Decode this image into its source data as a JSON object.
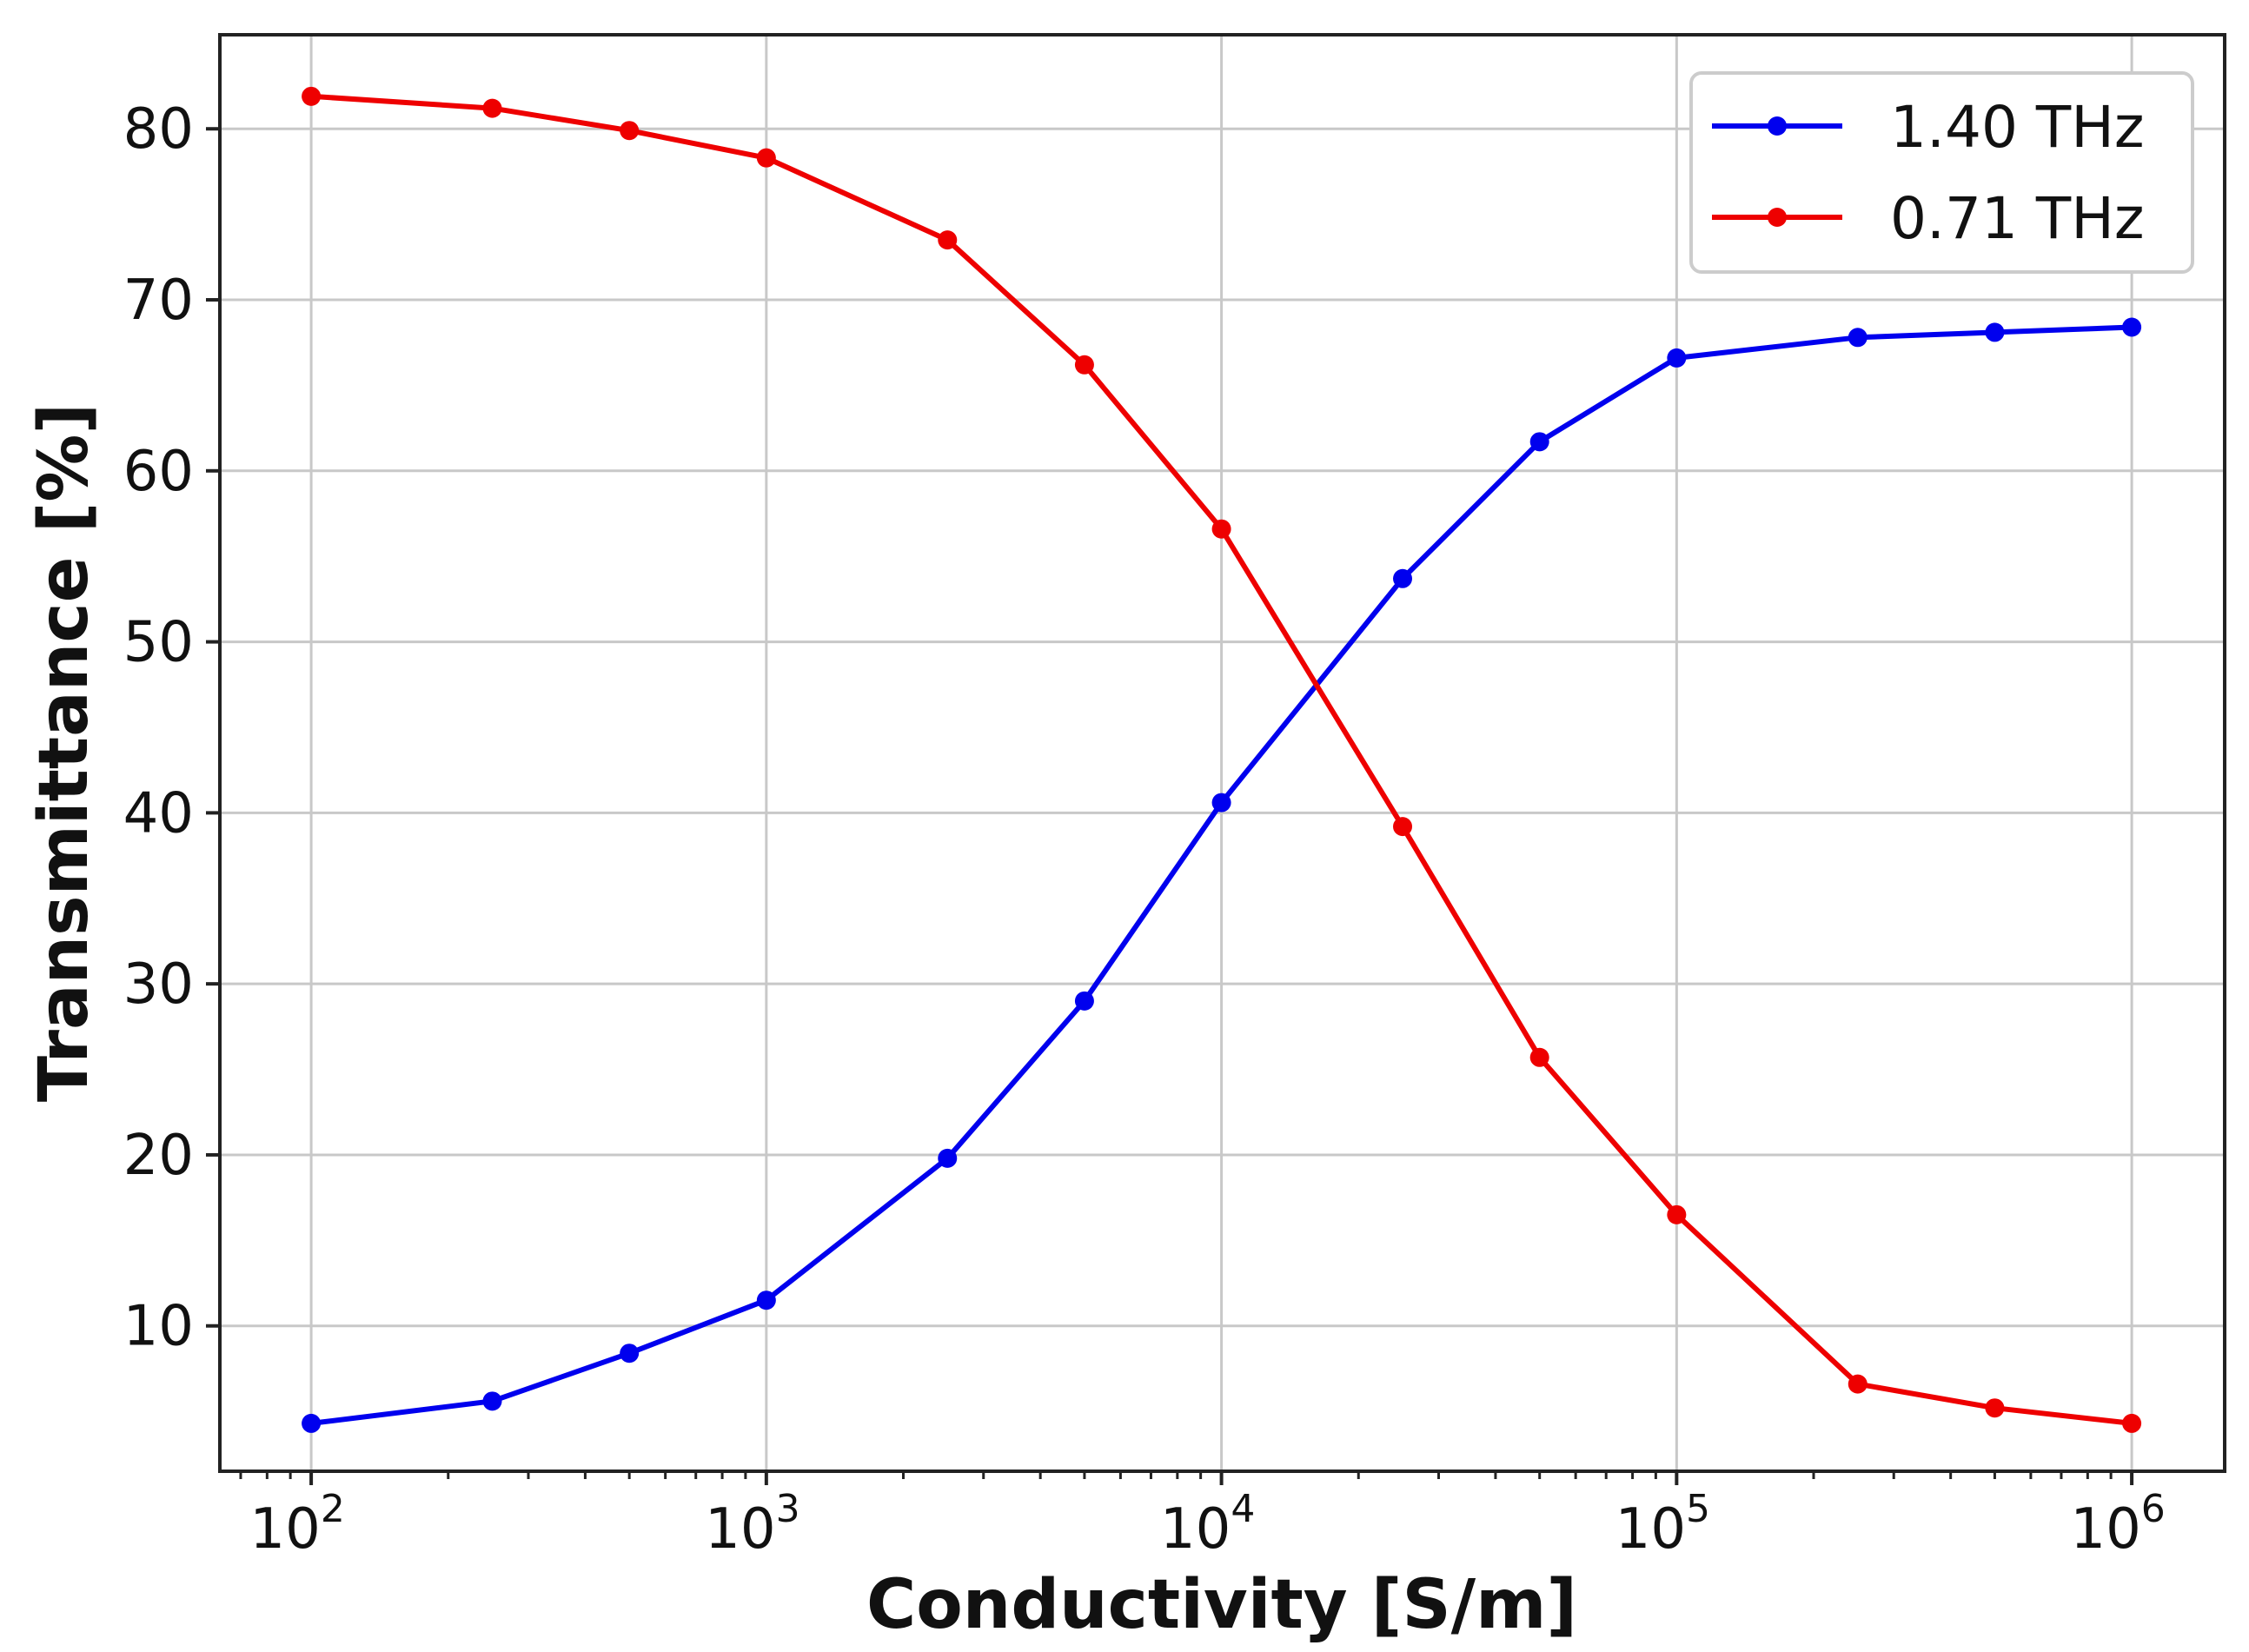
{
  "chart_data": {
    "type": "line",
    "title": "",
    "xlabel": "Conductivity [S/m]",
    "ylabel": "Transmittance [%]",
    "xscale": "log",
    "xlim": [
      63,
      1600000
    ],
    "ylim": [
      1.5,
      85.5
    ],
    "grid": true,
    "legend_position": "top-right",
    "x_ticks": [
      {
        "value": 100,
        "base": "10",
        "exp": "2"
      },
      {
        "value": 1000,
        "base": "10",
        "exp": "3"
      },
      {
        "value": 10000,
        "base": "10",
        "exp": "4"
      },
      {
        "value": 100000,
        "base": "10",
        "exp": "5"
      },
      {
        "value": 1000000,
        "base": "10",
        "exp": "6"
      }
    ],
    "y_ticks": [
      10,
      20,
      30,
      40,
      50,
      60,
      70,
      80
    ],
    "x": [
      100,
      250,
      500,
      1000,
      2500,
      5000,
      10000,
      25000,
      50000,
      100000,
      250000,
      500000,
      1000000
    ],
    "series": [
      {
        "name": "1.40 THz",
        "color": "#0000ee",
        "values": [
          4.3,
          5.6,
          8.4,
          11.5,
          19.8,
          29.0,
          40.6,
          53.7,
          61.7,
          66.6,
          67.8,
          68.1,
          68.4
        ]
      },
      {
        "name": "0.71 THz",
        "color": "#ee0000",
        "values": [
          81.9,
          81.2,
          79.9,
          78.3,
          73.5,
          66.2,
          56.6,
          39.2,
          25.7,
          16.5,
          6.6,
          5.2,
          4.3
        ]
      }
    ]
  }
}
